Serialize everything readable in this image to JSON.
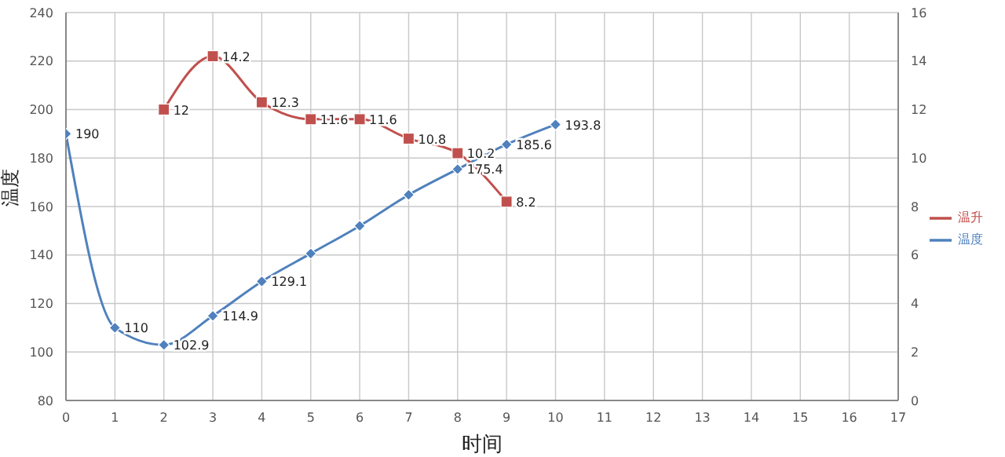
{
  "chart_data": {
    "type": "line",
    "xlabel": "时间",
    "ylabel": "温度",
    "x": [
      0,
      1,
      2,
      3,
      4,
      5,
      6,
      7,
      8,
      9,
      10
    ],
    "series": [
      {
        "name": "温度",
        "color": "#4f81bd",
        "marker": "diamond",
        "values": [
          190,
          110,
          102.9,
          114.9,
          129.1,
          140.6,
          152,
          164.8,
          175.4,
          185.6,
          193.8
        ],
        "value_labels": [
          "190",
          "110",
          "102.9",
          "114.9",
          "129.1",
          null,
          null,
          null,
          "175.4",
          "185.6",
          "193.8"
        ]
      },
      {
        "name": "温升",
        "color": "#c0504d",
        "marker": "square",
        "axis": "y2",
        "values": [
          null,
          null,
          12,
          14.2,
          12.3,
          11.6,
          11.6,
          10.8,
          10.2,
          8.2,
          null
        ],
        "value_labels": [
          null,
          null,
          "12",
          "14.2",
          "12.3",
          "11.6",
          "11.6",
          "10.8",
          "10.2",
          "8.2",
          null
        ]
      }
    ],
    "xlim": [
      0,
      17
    ],
    "xticks": [
      0,
      1,
      2,
      3,
      4,
      5,
      6,
      7,
      8,
      9,
      10,
      11,
      12,
      13,
      14,
      15,
      16,
      17
    ],
    "ylim": [
      80,
      240
    ],
    "yticks": [
      80,
      100,
      120,
      140,
      160,
      180,
      200,
      220,
      240
    ],
    "y2lim": [
      0,
      16
    ],
    "y2ticks": [
      0,
      2,
      4,
      6,
      8,
      10,
      12,
      14,
      16
    ],
    "grid": true,
    "legend": "right"
  }
}
